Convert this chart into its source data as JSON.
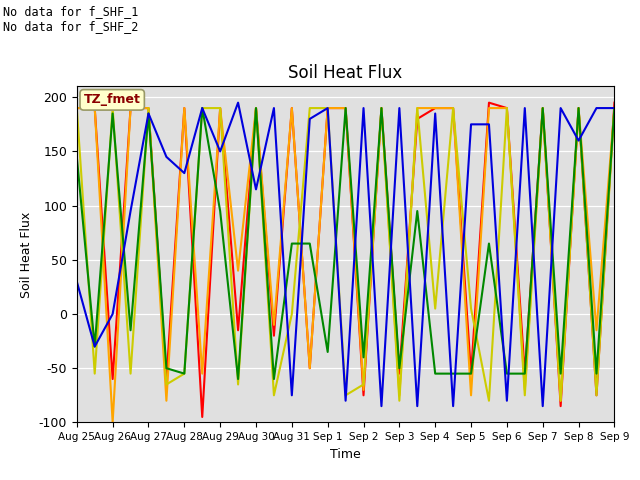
{
  "title": "Soil Heat Flux",
  "ylabel": "Soil Heat Flux",
  "xlabel": "Time",
  "ylim": [
    -100,
    210
  ],
  "annotation_text": "No data for f_SHF_1\nNo data for f_SHF_2",
  "legend_box_text": "TZ_fmet",
  "colors": {
    "SHF1": "#ff0000",
    "SHF2": "#ffa500",
    "SHF3": "#cccc00",
    "SHF4": "#008800",
    "SHF5": "#0000dd"
  },
  "xtick_labels": [
    "Aug 25",
    "Aug 26",
    "Aug 27",
    "Aug 28",
    "Aug 29",
    "Aug 30",
    "Aug 31",
    "Sep 1",
    "Sep 2",
    "Sep 3",
    "Sep 4",
    "Sep 5",
    "Sep 6",
    "Sep 7",
    "Sep 8",
    "Sep 9"
  ],
  "ytick_labels": [
    -100,
    -50,
    0,
    50,
    100,
    150,
    200
  ],
  "background_color": "#e0e0e0",
  "figsize": [
    6.4,
    4.8
  ],
  "dpi": 100,
  "series": {
    "SHF1": [
      190,
      190,
      -60,
      190,
      190,
      -60,
      190,
      -95,
      190,
      -15,
      190,
      -20,
      190,
      -50,
      190,
      190,
      -75,
      190,
      -55,
      180,
      190,
      190,
      -55,
      195,
      190,
      -55,
      190,
      -85,
      190,
      -75,
      195
    ],
    "SHF2": [
      190,
      190,
      -100,
      190,
      190,
      -80,
      190,
      -55,
      190,
      40,
      190,
      -10,
      190,
      -50,
      190,
      190,
      -70,
      190,
      -75,
      190,
      190,
      190,
      -75,
      190,
      190,
      -70,
      190,
      -80,
      190,
      -15,
      190
    ],
    "SHF3": [
      190,
      -55,
      190,
      -55,
      190,
      -65,
      -55,
      190,
      190,
      -65,
      190,
      -75,
      0,
      190,
      190,
      -75,
      -65,
      190,
      -80,
      190,
      5,
      190,
      5,
      -80,
      190,
      -75,
      190,
      -80,
      190,
      -75,
      190
    ],
    "SHF4": [
      145,
      -30,
      185,
      -15,
      185,
      -50,
      -55,
      190,
      95,
      -60,
      190,
      -60,
      65,
      65,
      -35,
      190,
      -40,
      190,
      -50,
      95,
      -55,
      -55,
      -55,
      65,
      -55,
      -55,
      190,
      -55,
      190,
      -55,
      190
    ],
    "SHF5": [
      30,
      -30,
      0,
      95,
      185,
      145,
      130,
      190,
      150,
      195,
      115,
      190,
      -75,
      180,
      190,
      -80,
      190,
      -85,
      190,
      -85,
      185,
      -85,
      175,
      175,
      -80,
      190,
      -85,
      190,
      160,
      190,
      190
    ]
  },
  "n_per_day": 2
}
